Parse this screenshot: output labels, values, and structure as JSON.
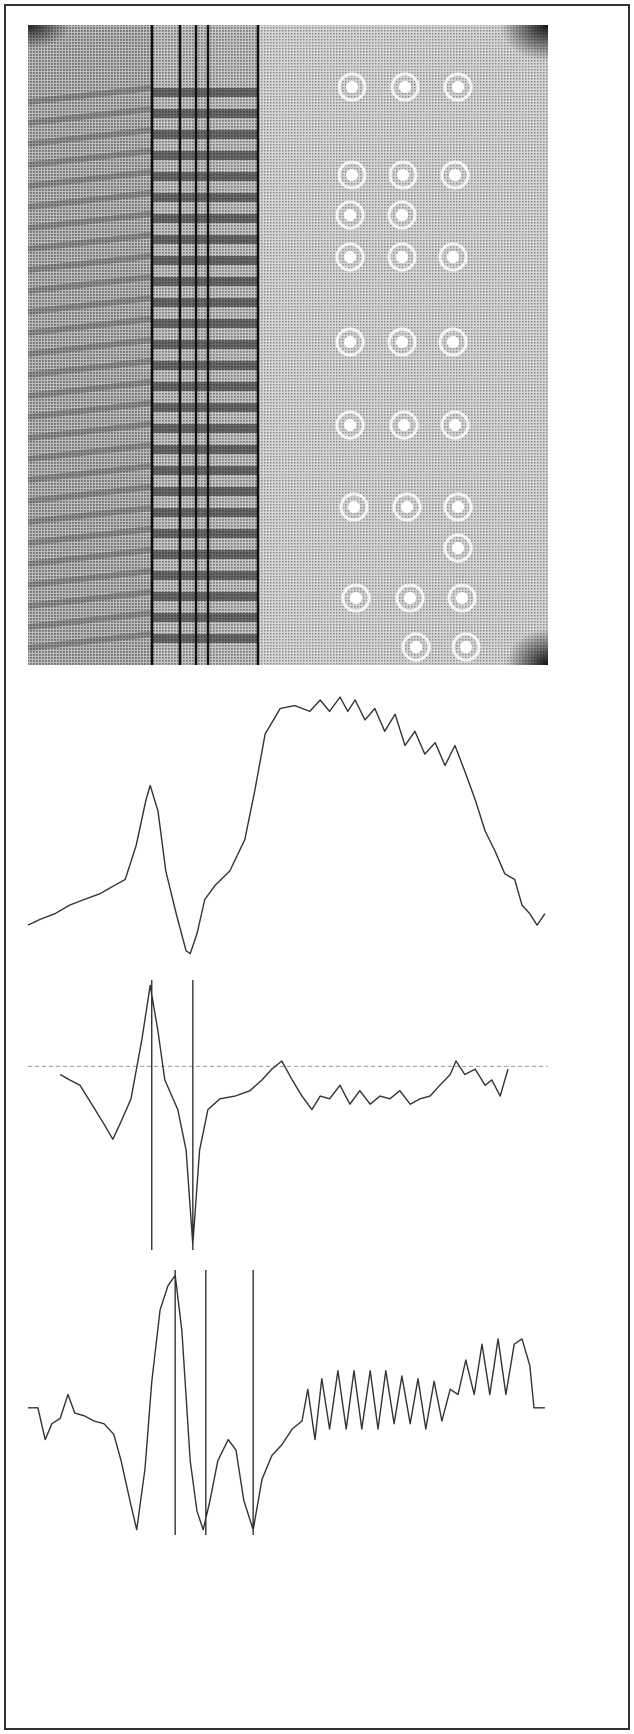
{
  "chart_data": [
    {
      "type": "line",
      "xlim": [
        0,
        100
      ],
      "ylim": [
        0,
        100
      ],
      "color": "#333333",
      "x": [
        0,
        2.3,
        5.2,
        8,
        10.8,
        13.8,
        16.7,
        18.7,
        20.8,
        22.7,
        23.5,
        25,
        26.5,
        28.5,
        30.4,
        31.2,
        32.5,
        34,
        36,
        38.8,
        41.7,
        43.6,
        45.6,
        48.5,
        51.3,
        54.2,
        56.2,
        58,
        60,
        61.5,
        62.9,
        64.8,
        66.7,
        68.6,
        70.6,
        72.5,
        74.4,
        76.3,
        78.3,
        80.2,
        82.1,
        84,
        86,
        87.9,
        89.8,
        91.7,
        93.6,
        95,
        96.5,
        97.9,
        99.4
      ],
      "values": [
        14,
        16,
        18,
        21,
        23,
        25,
        28,
        30,
        42,
        58,
        63,
        54,
        33,
        18,
        5,
        4,
        11,
        23,
        28,
        33,
        44,
        61,
        81,
        90,
        91,
        89,
        93,
        89,
        94,
        89,
        93,
        86,
        90,
        82,
        88,
        77,
        82,
        74,
        78,
        70,
        77,
        68,
        58,
        47,
        40,
        32,
        30,
        21,
        18,
        14,
        18
      ]
    },
    {
      "type": "line",
      "xlim": [
        0,
        100
      ],
      "ylim": [
        0,
        100
      ],
      "color": "#333333",
      "baseline": 68,
      "vlines": [
        23.8,
        31.7
      ],
      "x": [
        6.2,
        8,
        10,
        12.9,
        14.8,
        16.3,
        18,
        19.8,
        21.9,
        23.5,
        25,
        26.3,
        28.8,
        30.4,
        31.7,
        33,
        34.6,
        36.9,
        39.8,
        42.7,
        45,
        46.9,
        48.8,
        50.8,
        52.7,
        54.6,
        56.2,
        58,
        60,
        61.9,
        63.8,
        65.8,
        67.7,
        69.6,
        71.5,
        73.5,
        75.4,
        77.3,
        79.2,
        81.2,
        82.3,
        84,
        86,
        87.9,
        89.2,
        90.8,
        92.3
      ],
      "values": [
        65,
        63,
        61,
        52,
        46,
        41,
        48,
        56,
        78,
        98,
        81,
        63,
        52,
        37,
        2,
        37,
        52,
        56,
        57,
        59,
        63,
        67,
        70,
        63,
        57,
        52,
        57,
        56,
        61,
        54,
        59,
        54,
        57,
        56,
        59,
        54,
        56,
        57,
        61,
        65,
        70,
        65,
        67,
        61,
        63,
        57,
        67
      ]
    },
    {
      "type": "line",
      "xlim": [
        0,
        100
      ],
      "ylim": [
        0,
        100
      ],
      "color": "#333333",
      "vlines": [
        28.3,
        34.2,
        43.3
      ],
      "x": [
        0,
        1.9,
        3.3,
        4.6,
        6.2,
        7.7,
        9,
        10.8,
        12.7,
        14.6,
        16.5,
        17.9,
        19.6,
        20.9,
        22.5,
        23.8,
        25.4,
        26.9,
        28.3,
        29.6,
        31.2,
        32.5,
        33.7,
        35,
        36.5,
        38.5,
        40,
        41.5,
        43.3,
        45,
        46.9,
        48.8,
        50.8,
        52.7,
        53.8,
        55.2,
        56.5,
        58,
        59.6,
        61.2,
        62.7,
        64.2,
        65.8,
        67.3,
        68.8,
        70.4,
        71.9,
        73.5,
        75,
        76.5,
        78.1,
        79.6,
        81.2,
        82.7,
        84.2,
        85.8,
        87.3,
        88.8,
        90.4,
        91.9,
        93.5,
        95,
        96.5,
        97.3,
        99.4
      ],
      "values": [
        48,
        48,
        36,
        42,
        44,
        53,
        46,
        45,
        43,
        42,
        38,
        28,
        13,
        2,
        25,
        58,
        85,
        94,
        98,
        77,
        28,
        9,
        2,
        13,
        28,
        36,
        32,
        13,
        2,
        21,
        30,
        34,
        40,
        43,
        55,
        36,
        59,
        40,
        62,
        40,
        62,
        40,
        62,
        40,
        62,
        42,
        60,
        42,
        59,
        40,
        58,
        43,
        55,
        53,
        66,
        53,
        72,
        53,
        74,
        53,
        72,
        74,
        64,
        48,
        48
      ]
    }
  ]
}
